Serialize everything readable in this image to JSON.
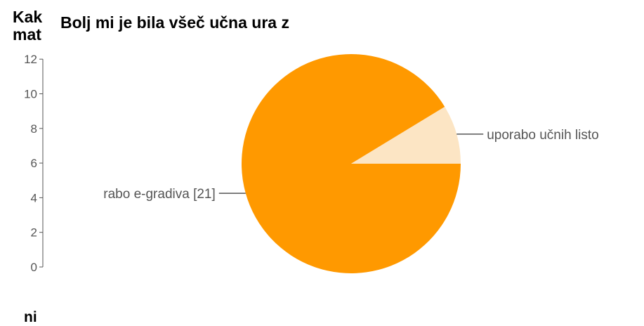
{
  "background_chart": {
    "title_fragment": "Kak\nmat",
    "x_label_fragment": "ni",
    "y_ticks": [
      "0",
      "2",
      "4",
      "6",
      "8",
      "10",
      "12"
    ]
  },
  "chart_data": {
    "type": "pie",
    "title": "Bolj mi je bila všeč učna ura z",
    "slices": [
      {
        "label": "rabo e-gradiva [21]",
        "value": 21,
        "color": "#ff9900"
      },
      {
        "label": "uporabo učnih listo",
        "value": 2,
        "color": "#fce5c4"
      }
    ]
  },
  "colors": {
    "axis": "#555555",
    "leader": "#555555"
  }
}
